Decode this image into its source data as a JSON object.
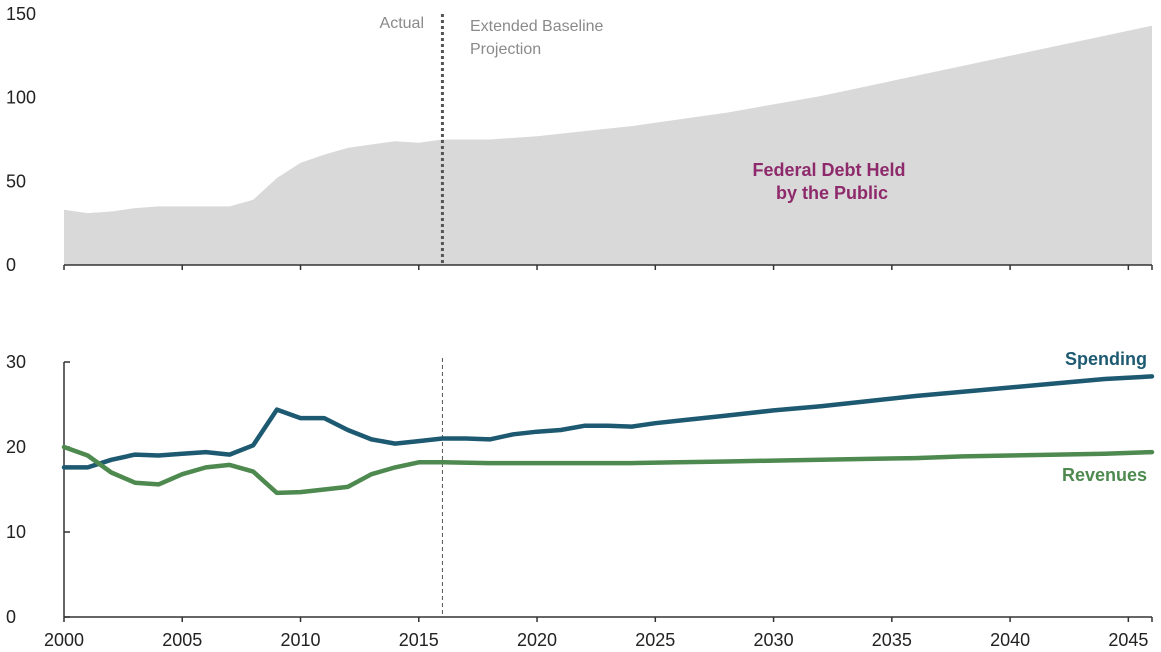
{
  "chart_data": [
    {
      "type": "area",
      "id": "debt",
      "title": "",
      "xlabel": "",
      "ylabel": "",
      "xlim": [
        2000,
        2046
      ],
      "ylim": [
        0,
        150
      ],
      "yticks": [
        0,
        50,
        100,
        150
      ],
      "annotations": {
        "actual": "Actual",
        "projection_line1": "Extended Baseline",
        "projection_line2": "Projection",
        "series_line1": "Federal Debt Held",
        "series_line2": "by the Public"
      },
      "divider_year": 2016,
      "fill_color": "#d9d9d9",
      "label_color": "#8e2a6b",
      "x": [
        2000,
        2001,
        2002,
        2003,
        2004,
        2005,
        2006,
        2007,
        2008,
        2009,
        2010,
        2011,
        2012,
        2013,
        2014,
        2015,
        2016,
        2018,
        2020,
        2022,
        2024,
        2026,
        2028,
        2030,
        2032,
        2034,
        2036,
        2038,
        2040,
        2042,
        2044,
        2046
      ],
      "values": [
        33,
        31,
        32,
        34,
        35,
        35,
        35,
        35,
        39,
        52,
        61,
        66,
        70,
        72,
        74,
        73,
        75,
        75,
        77,
        80,
        83,
        87,
        91,
        96,
        101,
        107,
        113,
        119,
        125,
        131,
        137,
        143
      ]
    },
    {
      "type": "line",
      "id": "budget",
      "title": "",
      "xlabel": "",
      "ylabel": "",
      "xlim": [
        2000,
        2046
      ],
      "ylim": [
        0,
        30
      ],
      "yticks": [
        0,
        10,
        20,
        30
      ],
      "xticks": [
        2000,
        2005,
        2010,
        2015,
        2020,
        2025,
        2030,
        2035,
        2040,
        2045
      ],
      "divider_year": 2016,
      "series": [
        {
          "name": "Spending",
          "color": "#1d5a72",
          "x": [
            2000,
            2001,
            2002,
            2003,
            2004,
            2005,
            2006,
            2007,
            2008,
            2009,
            2010,
            2011,
            2012,
            2013,
            2014,
            2015,
            2016,
            2017,
            2018,
            2019,
            2020,
            2021,
            2022,
            2023,
            2024,
            2025,
            2026,
            2028,
            2030,
            2032,
            2034,
            2036,
            2038,
            2040,
            2042,
            2044,
            2046
          ],
          "values": [
            17.6,
            17.6,
            18.5,
            19.1,
            19.0,
            19.2,
            19.4,
            19.1,
            20.2,
            24.4,
            23.4,
            23.4,
            22.0,
            20.9,
            20.4,
            20.7,
            21.0,
            21.0,
            20.9,
            21.5,
            21.8,
            22.0,
            22.5,
            22.5,
            22.4,
            22.8,
            23.1,
            23.7,
            24.3,
            24.8,
            25.4,
            26.0,
            26.5,
            27.0,
            27.5,
            28.0,
            28.3
          ]
        },
        {
          "name": "Revenues",
          "color": "#4e8a4f",
          "x": [
            2000,
            2001,
            2002,
            2003,
            2004,
            2005,
            2006,
            2007,
            2008,
            2009,
            2010,
            2011,
            2012,
            2013,
            2014,
            2015,
            2016,
            2018,
            2020,
            2022,
            2024,
            2026,
            2028,
            2030,
            2032,
            2034,
            2036,
            2038,
            2040,
            2042,
            2044,
            2046
          ],
          "values": [
            20.0,
            19.0,
            17.0,
            15.8,
            15.6,
            16.8,
            17.6,
            17.9,
            17.1,
            14.6,
            14.7,
            15.0,
            15.3,
            16.8,
            17.6,
            18.2,
            18.2,
            18.1,
            18.1,
            18.1,
            18.1,
            18.2,
            18.3,
            18.4,
            18.5,
            18.6,
            18.7,
            18.9,
            19.0,
            19.1,
            19.2,
            19.4
          ]
        }
      ]
    }
  ]
}
